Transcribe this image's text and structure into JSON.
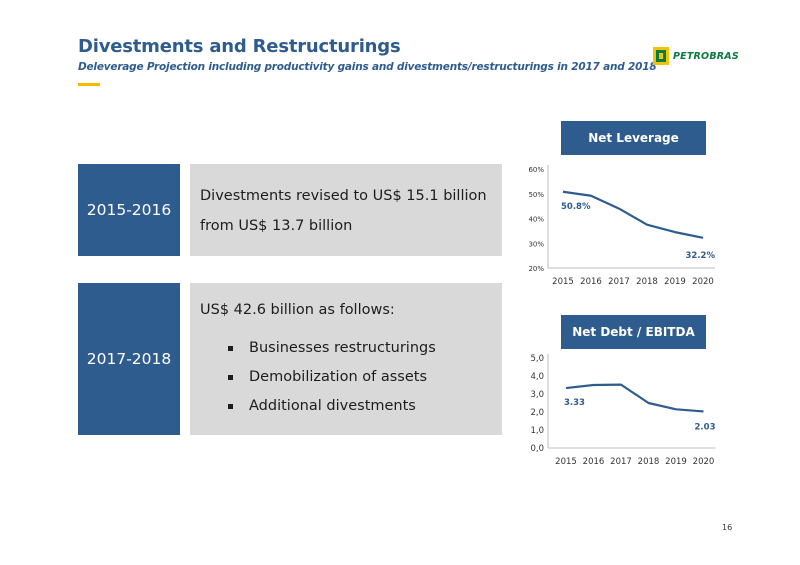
{
  "header": {
    "title": "Divestments and Restructurings",
    "subtitle": "Deleverage Projection including productivity gains and divestments/restructurings in 2017 and 2018",
    "logo_text": "PETROBRAS",
    "accent_color": "#f6b800",
    "brand_color": "#2f5c8e"
  },
  "rows": [
    {
      "period": "2015-2016",
      "lines": [
        "Divestments revised to US$ 15.1 billion",
        "from US$ 13.7 billion"
      ]
    },
    {
      "period": "2017-2018",
      "intro": "US$ 42.6 billion as follows:",
      "bullets": [
        "Businesses restructurings",
        "Demobilization of assets",
        "Additional divestments"
      ]
    }
  ],
  "chart_data": [
    {
      "type": "line",
      "title": "Net Leverage",
      "x": [
        "2015",
        "2016",
        "2017",
        "2018",
        "2019",
        "2020"
      ],
      "values": [
        50.8,
        49.2,
        44.0,
        37.5,
        34.5,
        32.2
      ],
      "yticks": [
        "20%",
        "30%",
        "40%",
        "50%",
        "60%"
      ],
      "ylim": [
        20,
        60
      ],
      "data_labels": {
        "first": "50.8%",
        "last": "32.2%"
      },
      "line_color": "#2f5c8e",
      "grid": false
    },
    {
      "type": "line",
      "title": "Net Debt / EBITDA",
      "x": [
        "2015",
        "2016",
        "2017",
        "2018",
        "2019",
        "2020"
      ],
      "values": [
        3.33,
        3.5,
        3.52,
        2.5,
        2.15,
        2.03
      ],
      "yticks": [
        "0,0",
        "1,0",
        "2,0",
        "3,0",
        "4,0",
        "5,0"
      ],
      "ylim": [
        0,
        5
      ],
      "data_labels": {
        "first": "3.33",
        "last": "2.03"
      },
      "line_color": "#2f5c8e",
      "grid": false
    }
  ],
  "page_number": "16"
}
